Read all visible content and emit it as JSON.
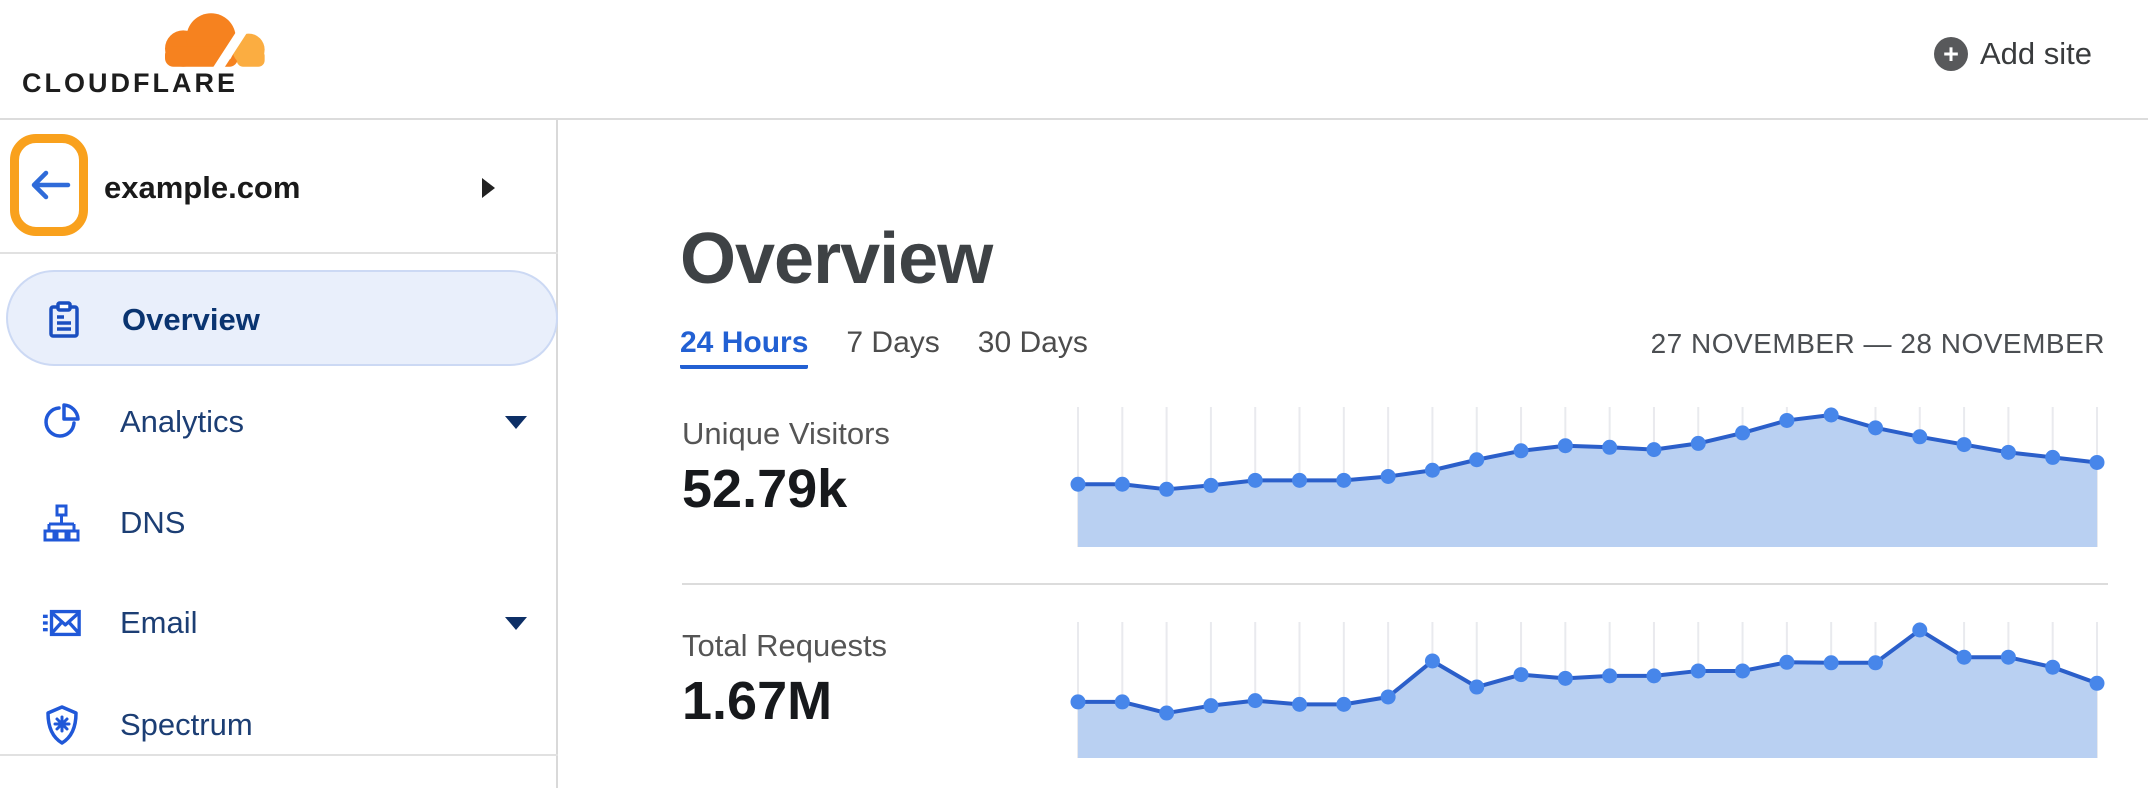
{
  "header": {
    "logo_text": "CLOUDFLARE",
    "add_site_label": "Add site"
  },
  "sidebar": {
    "site": {
      "name": "example.com"
    },
    "items": [
      {
        "label": "Overview",
        "icon": "clipboard-icon",
        "selected": true,
        "has_caret": false
      },
      {
        "label": "Analytics",
        "icon": "pie-chart-icon",
        "selected": false,
        "has_caret": true
      },
      {
        "label": "DNS",
        "icon": "hierarchy-icon",
        "selected": false,
        "has_caret": false
      },
      {
        "label": "Email",
        "icon": "envelope-icon",
        "selected": false,
        "has_caret": true
      },
      {
        "label": "Spectrum",
        "icon": "shield-icon",
        "selected": false,
        "has_caret": false
      }
    ]
  },
  "main": {
    "title": "Overview",
    "tabs": [
      {
        "label": "24 Hours",
        "active": true
      },
      {
        "label": "7 Days",
        "active": false
      },
      {
        "label": "30 Days",
        "active": false
      }
    ],
    "date_range": "27 NOVEMBER — 28 NOVEMBER"
  },
  "colors": {
    "accent_blue": "#2260d3",
    "nav_icon_blue": "#2058d8",
    "highlight_orange": "#f9a11d",
    "chart_line": "#2b5fca",
    "chart_dot": "#4786ea",
    "chart_fill": "#b9d0f2",
    "chart_grid": "#e9eaee",
    "logo_orange": "#f6821f",
    "logo_orange_light": "#fbad41"
  },
  "chart_data": [
    {
      "type": "area",
      "title": "Unique Visitors",
      "total": "52.79k",
      "points": 24,
      "x_note": "24 hourly points, 27 November — 28 November (no axis labels shown)",
      "values": [
        1510,
        1510,
        1380,
        1480,
        1610,
        1610,
        1610,
        1710,
        1870,
        2140,
        2370,
        2500,
        2460,
        2400,
        2560,
        2830,
        3150,
        3290,
        2960,
        2730,
        2530,
        2330,
        2200,
        2070
      ],
      "ylim": [
        0,
        3290
      ],
      "grid": "vertical-only",
      "legend": "none",
      "axes": "hidden"
    },
    {
      "type": "area",
      "title": "Total Requests",
      "total": "1.67M",
      "points": 24,
      "x_note": "24 hourly points, 27 November — 28 November (no axis labels shown)",
      "values": [
        48600,
        48600,
        38200,
        45100,
        49800,
        46300,
        46300,
        53200,
        86800,
        62500,
        74100,
        70600,
        72900,
        72900,
        77500,
        77500,
        85600,
        85100,
        85100,
        115700,
        90300,
        90300,
        81000,
        66000
      ],
      "ylim": [
        0,
        115700
      ],
      "grid": "vertical-only",
      "legend": "none",
      "axes": "hidden"
    }
  ]
}
